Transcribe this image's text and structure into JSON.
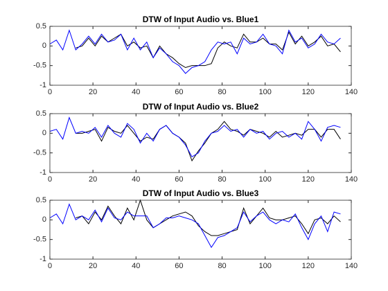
{
  "chart_data": [
    {
      "type": "line",
      "title": "DTW of Input Audio vs. Blue1",
      "x": [
        0,
        3,
        6,
        9,
        12,
        15,
        18,
        21,
        24,
        27,
        30,
        33,
        36,
        39,
        42,
        45,
        48,
        51,
        54,
        57,
        60,
        63,
        66,
        69,
        72,
        75,
        78,
        81,
        84,
        87,
        90,
        93,
        96,
        99,
        102,
        105,
        108,
        111,
        114,
        117,
        120,
        123,
        126,
        129,
        132,
        135
      ],
      "series": [
        {
          "color": "#000000",
          "values": [
            null,
            null,
            null,
            null,
            -0.05,
            0.0,
            0.2,
            0.0,
            0.25,
            0.1,
            0.2,
            0.3,
            0.0,
            0.1,
            -0.05,
            0.0,
            -0.3,
            0.0,
            -0.2,
            -0.3,
            -0.45,
            -0.55,
            -0.5,
            -0.5,
            -0.5,
            -0.45,
            -0.05,
            0.1,
            0.0,
            -0.05,
            0.3,
            0.1,
            0.1,
            0.2,
            0.05,
            0.05,
            -0.1,
            0.35,
            0.05,
            0.25,
            0.0,
            0.1,
            0.25,
            0.0,
            0.05,
            -0.15
          ]
        },
        {
          "color": "#0000ff",
          "values": [
            0.05,
            0.15,
            -0.1,
            0.4,
            -0.1,
            0.05,
            0.25,
            0.05,
            0.3,
            0.1,
            0.15,
            0.3,
            -0.1,
            0.2,
            -0.1,
            0.1,
            -0.3,
            -0.05,
            -0.2,
            -0.4,
            -0.5,
            -0.7,
            -0.55,
            -0.5,
            -0.4,
            -0.1,
            0.1,
            0.05,
            0.1,
            -0.2,
            0.2,
            0.05,
            0.1,
            0.3,
            0.05,
            0.0,
            -0.2,
            0.4,
            0.1,
            0.2,
            -0.05,
            0.05,
            0.3,
            0.1,
            0.05,
            0.2
          ]
        }
      ],
      "xlim": [
        0,
        140
      ],
      "xticks": [
        0,
        20,
        40,
        60,
        80,
        100,
        120,
        140
      ],
      "ylim": [
        -1,
        0.5
      ],
      "yticks": [
        -1,
        -0.5,
        0,
        0.5
      ]
    },
    {
      "type": "line",
      "title": "DTW of Input Audio vs. Blue2",
      "x": [
        0,
        3,
        6,
        9,
        12,
        15,
        18,
        21,
        24,
        27,
        30,
        33,
        36,
        39,
        42,
        45,
        48,
        51,
        54,
        57,
        60,
        63,
        66,
        69,
        72,
        75,
        78,
        81,
        84,
        87,
        90,
        93,
        96,
        99,
        102,
        105,
        108,
        111,
        114,
        117,
        120,
        123,
        126,
        129,
        132,
        135
      ],
      "series": [
        {
          "color": "#000000",
          "values": [
            null,
            null,
            null,
            null,
            0.0,
            0.0,
            0.05,
            0.1,
            -0.2,
            0.15,
            0.05,
            0.0,
            0.2,
            0.0,
            -0.2,
            -0.1,
            -0.15,
            0.1,
            0.2,
            0.0,
            -0.1,
            -0.25,
            -0.7,
            -0.45,
            -0.25,
            0.0,
            0.1,
            0.3,
            0.1,
            0.05,
            -0.05,
            0.1,
            0.05,
            0.0,
            -0.1,
            0.05,
            -0.1,
            -0.05,
            0.0,
            -0.05,
            0.1,
            0.1,
            -0.1,
            0.1,
            0.1,
            -0.15
          ]
        },
        {
          "color": "#0000ff",
          "values": [
            0.05,
            0.1,
            -0.15,
            0.4,
            0.0,
            0.05,
            0.0,
            0.15,
            -0.1,
            0.2,
            0.0,
            -0.1,
            0.25,
            0.1,
            -0.25,
            0.0,
            -0.2,
            0.1,
            0.2,
            0.0,
            -0.1,
            -0.3,
            -0.6,
            -0.5,
            -0.2,
            0.0,
            0.05,
            0.2,
            0.05,
            0.1,
            -0.1,
            0.1,
            0.0,
            0.05,
            -0.15,
            0.0,
            0.05,
            -0.1,
            0.0,
            -0.15,
            0.3,
            0.1,
            -0.2,
            0.15,
            0.2,
            0.15
          ]
        }
      ],
      "xlim": [
        0,
        140
      ],
      "xticks": [
        0,
        20,
        40,
        60,
        80,
        100,
        120,
        140
      ],
      "ylim": [
        -1,
        0.5
      ],
      "yticks": [
        -1,
        -0.5,
        0,
        0.5
      ]
    },
    {
      "type": "line",
      "title": "DTW of Input Audio vs. Blue3",
      "x": [
        0,
        3,
        6,
        9,
        12,
        15,
        18,
        21,
        24,
        27,
        30,
        33,
        36,
        39,
        42,
        45,
        48,
        51,
        54,
        57,
        60,
        63,
        66,
        69,
        72,
        75,
        78,
        81,
        84,
        87,
        90,
        93,
        96,
        99,
        102,
        105,
        108,
        111,
        114,
        117,
        120,
        123,
        126,
        129,
        132,
        135
      ],
      "series": [
        {
          "color": "#000000",
          "values": [
            null,
            null,
            null,
            null,
            0.05,
            0.1,
            -0.1,
            0.2,
            0.0,
            0.35,
            0.1,
            -0.1,
            0.3,
            0.0,
            0.5,
            0.0,
            -0.2,
            -0.1,
            0.0,
            0.1,
            0.15,
            0.2,
            0.1,
            -0.15,
            -0.3,
            -0.4,
            -0.4,
            -0.35,
            -0.3,
            -0.25,
            0.3,
            -0.1,
            0.1,
            0.3,
            0.05,
            0.0,
            0.0,
            0.05,
            0.1,
            -0.1,
            -0.35,
            0.0,
            0.05,
            -0.1,
            0.1,
            -0.05
          ]
        },
        {
          "color": "#0000ff",
          "values": [
            0.05,
            0.15,
            -0.1,
            0.4,
            0.0,
            0.1,
            0.0,
            0.25,
            -0.05,
            0.3,
            0.05,
            0.0,
            0.2,
            0.1,
            0.1,
            0.1,
            -0.2,
            -0.1,
            0.05,
            0.05,
            0.1,
            0.05,
            0.0,
            -0.1,
            -0.4,
            -0.7,
            -0.45,
            -0.4,
            -0.3,
            -0.2,
            0.2,
            -0.05,
            0.1,
            0.2,
            0.0,
            -0.1,
            0.0,
            -0.05,
            0.15,
            -0.2,
            -0.5,
            -0.1,
            0.1,
            -0.3,
            0.2,
            0.15
          ]
        }
      ],
      "xlim": [
        0,
        140
      ],
      "xticks": [
        0,
        20,
        40,
        60,
        80,
        100,
        120,
        140
      ],
      "ylim": [
        -1,
        0.5
      ],
      "yticks": [
        -1,
        -0.5,
        0,
        0.5
      ]
    }
  ]
}
